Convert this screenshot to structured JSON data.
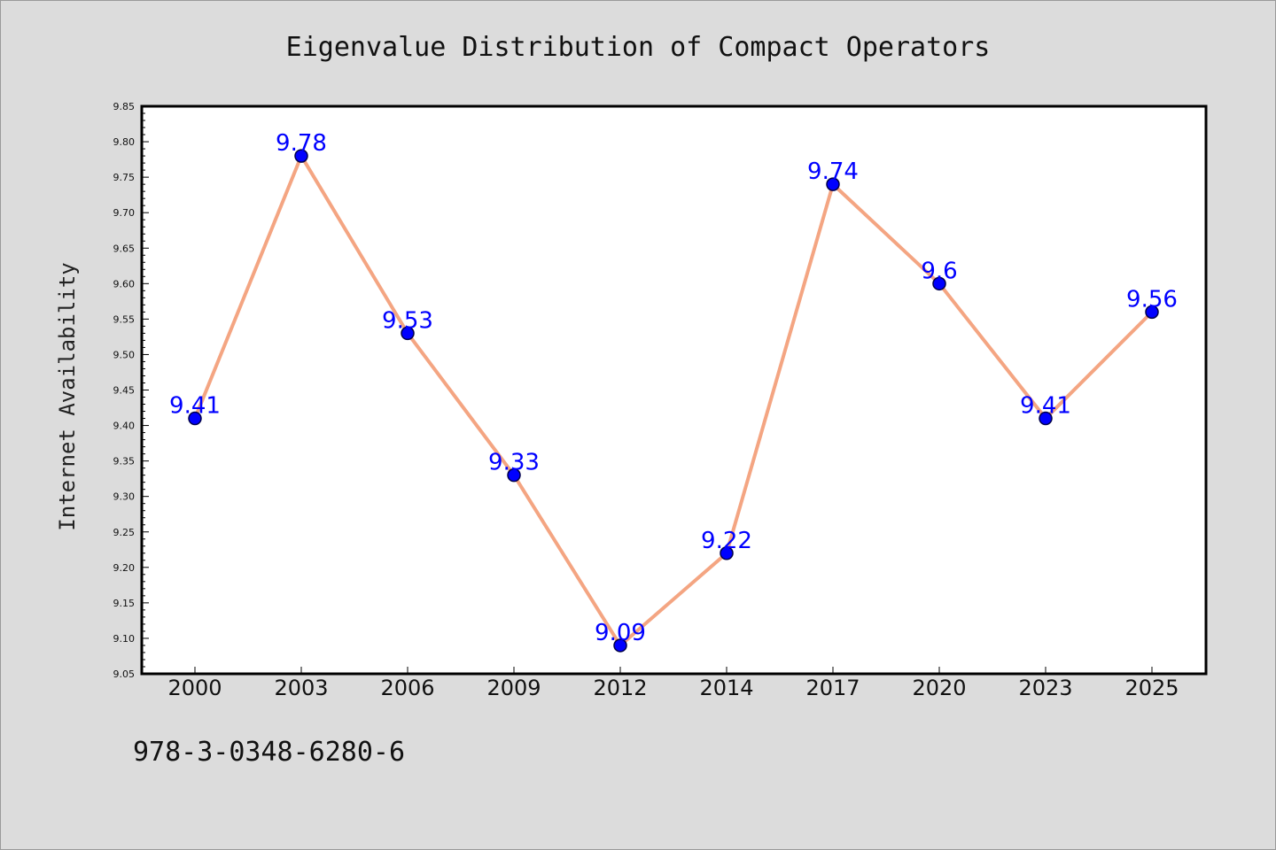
{
  "chart_data": {
    "type": "line",
    "title": "Eigenvalue Distribution of Compact Operators",
    "xlabel": "",
    "ylabel": "Internet Availability",
    "categories": [
      "2000",
      "2003",
      "2006",
      "2009",
      "2012",
      "2014",
      "2017",
      "2020",
      "2023",
      "2025"
    ],
    "series": [
      {
        "values": [
          9.41,
          9.78,
          9.53,
          9.33,
          9.09,
          9.22,
          9.74,
          9.6,
          9.41,
          9.56
        ],
        "labels": [
          "9.41",
          "9.78",
          "9.53",
          "9.33",
          "9.09",
          "9.22",
          "9.74",
          "9.6",
          "9.41",
          "9.56"
        ],
        "line_color": "#f4a582",
        "marker_color": "#0000ff"
      }
    ],
    "ylim": [
      9.05,
      9.85
    ],
    "yticks": [
      "9.05",
      "9.10",
      "9.15",
      "9.20",
      "9.25",
      "9.30",
      "9.35",
      "9.40",
      "9.45",
      "9.50",
      "9.55",
      "9.60",
      "9.65",
      "9.70",
      "9.75",
      "9.80",
      "9.85"
    ],
    "grid": false,
    "legend": "none"
  },
  "footer": {
    "isbn": "978-3-0348-6280-6"
  },
  "colors": {
    "page_background": "#dcdcdc",
    "plot_background": "#ffffff",
    "label_color": "#0000ff"
  }
}
